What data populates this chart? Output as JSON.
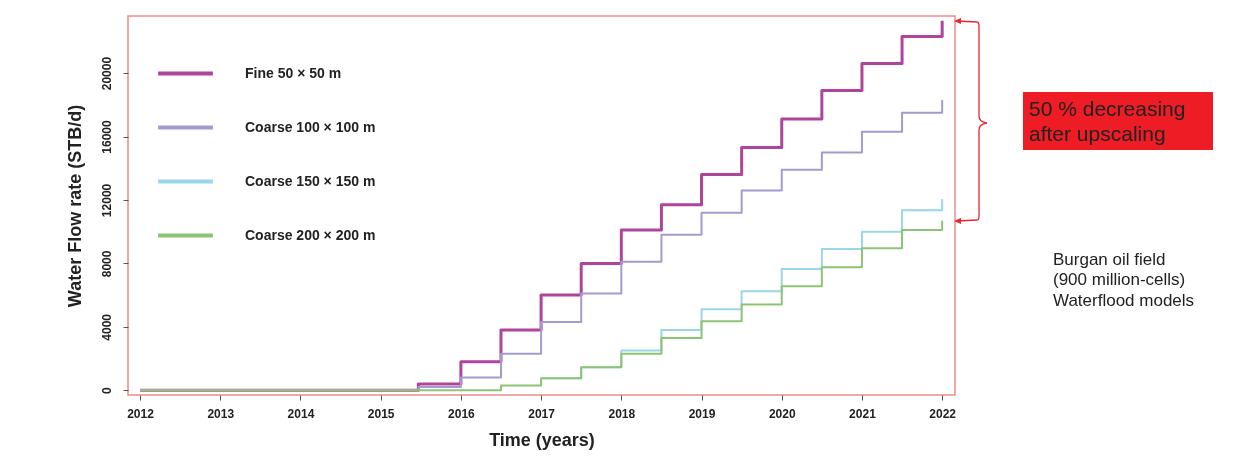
{
  "chart_data": {
    "type": "step",
    "xlabel": "Time (years)",
    "ylabel": "Water Flow rate (STB/d)",
    "xlim": [
      2011.85,
      2022.16
    ],
    "xticks": [
      2012,
      2013,
      2014,
      2015,
      2016,
      2017,
      2018,
      2019,
      2020,
      2021,
      2022
    ],
    "ylim": [
      -300,
      23600
    ],
    "yticks": [
      0,
      4000,
      8000,
      12000,
      16000,
      20000
    ],
    "grid": false,
    "legend": "top left",
    "line_style": "solid",
    "marker": "none",
    "series": [
      {
        "name": "Fine 50 × 50 m",
        "color": "#b0449a",
        "x": [
          2012,
          2015.47,
          2016,
          2016.5,
          2017,
          2017.5,
          2018,
          2018.5,
          2019,
          2019.5,
          2020,
          2020.5,
          2021,
          2021.5,
          2022,
          2022
        ],
        "values": [
          0,
          400,
          1800,
          3800,
          6000,
          8000,
          10100,
          11700,
          13600,
          15300,
          17100,
          18900,
          20600,
          22300,
          22300,
          23300
        ]
      },
      {
        "name": "Coarse 100 × 100 m",
        "color": "#a49ad0",
        "x": [
          2012,
          2015.47,
          2016,
          2016.5,
          2017,
          2017.5,
          2018,
          2018.5,
          2019,
          2019.5,
          2020,
          2020.5,
          2021,
          2021.5,
          2022,
          2022
        ],
        "values": [
          0,
          200,
          800,
          2300,
          4300,
          6100,
          8100,
          9800,
          11200,
          12600,
          13900,
          15000,
          16300,
          17500,
          17500,
          18300
        ]
      },
      {
        "name": "Coarse 150 × 150 m",
        "color": "#9ad6e8",
        "x": [
          2017,
          2017.5,
          2018,
          2018.5,
          2019,
          2019.5,
          2020,
          2020.5,
          2021,
          2021.5,
          2022,
          2022
        ],
        "values": [
          750,
          1450,
          2500,
          3800,
          5100,
          6250,
          7650,
          8900,
          10000,
          11350,
          11350,
          12050
        ]
      },
      {
        "name": "Coarse 200 × 200 m",
        "color": "#8cc474",
        "x": [
          2012,
          2016.5,
          2017,
          2017.5,
          2018,
          2018.5,
          2019,
          2019.5,
          2020,
          2020.5,
          2021,
          2021.5,
          2022,
          2022
        ],
        "values": [
          0,
          300,
          750,
          1450,
          2300,
          3300,
          4350,
          5400,
          6550,
          7750,
          8950,
          10100,
          10100,
          10700
        ]
      }
    ],
    "annotations": [
      "50 % decreasing after upscaling",
      "Burgan oil field (900 million-cells) Waterflood models"
    ]
  }
}
